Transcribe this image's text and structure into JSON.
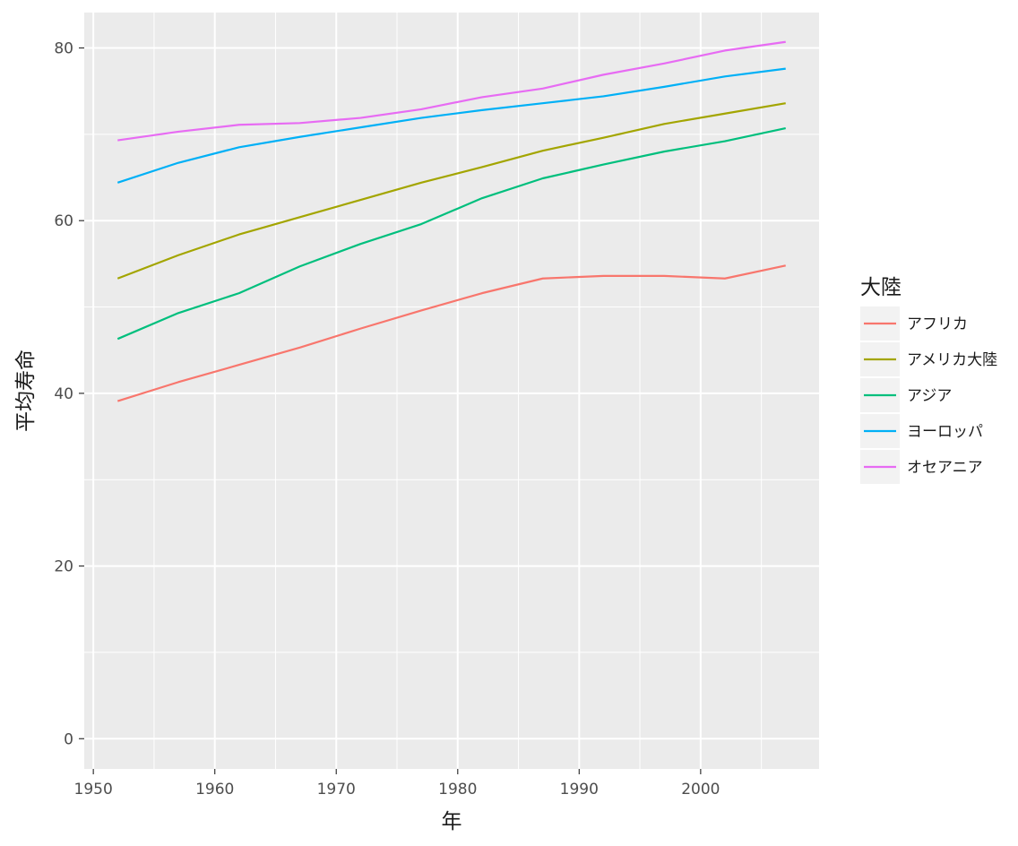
{
  "chart_data": {
    "type": "line",
    "title": "",
    "xlabel": "年",
    "ylabel": "平均寿命",
    "xlim": [
      1949.25,
      2009.75
    ],
    "ylim": [
      -3.5,
      84.1
    ],
    "x_ticks": [
      1950,
      1960,
      1970,
      1980,
      1990,
      2000
    ],
    "y_ticks": [
      0,
      20,
      40,
      60,
      80
    ],
    "grid": true,
    "legend": {
      "title": "大陸",
      "position": "right"
    },
    "x": [
      1952,
      1957,
      1962,
      1967,
      1972,
      1977,
      1982,
      1987,
      1992,
      1997,
      2002,
      2007
    ],
    "series": [
      {
        "name": "アフリカ",
        "color": "#F8766D",
        "values": [
          39.1,
          41.3,
          43.3,
          45.3,
          47.5,
          49.6,
          51.6,
          53.3,
          53.6,
          53.6,
          53.3,
          54.8
        ]
      },
      {
        "name": "アメリカ大陸",
        "color": "#A3A500",
        "values": [
          53.3,
          56.0,
          58.4,
          60.4,
          62.4,
          64.4,
          66.2,
          68.1,
          69.6,
          71.2,
          72.4,
          73.6
        ]
      },
      {
        "name": "アジア",
        "color": "#00BF7D",
        "values": [
          46.3,
          49.3,
          51.6,
          54.7,
          57.3,
          59.6,
          62.6,
          64.9,
          66.5,
          68.0,
          69.2,
          70.7
        ]
      },
      {
        "name": "ヨーロッパ",
        "color": "#00B0F6",
        "values": [
          64.4,
          66.7,
          68.5,
          69.7,
          70.8,
          71.9,
          72.8,
          73.6,
          74.4,
          75.5,
          76.7,
          77.6
        ]
      },
      {
        "name": "オセアニア",
        "color": "#E76BF3",
        "values": [
          69.3,
          70.3,
          71.1,
          71.3,
          71.9,
          72.9,
          74.3,
          75.3,
          76.9,
          78.2,
          79.7,
          80.7
        ]
      }
    ]
  }
}
